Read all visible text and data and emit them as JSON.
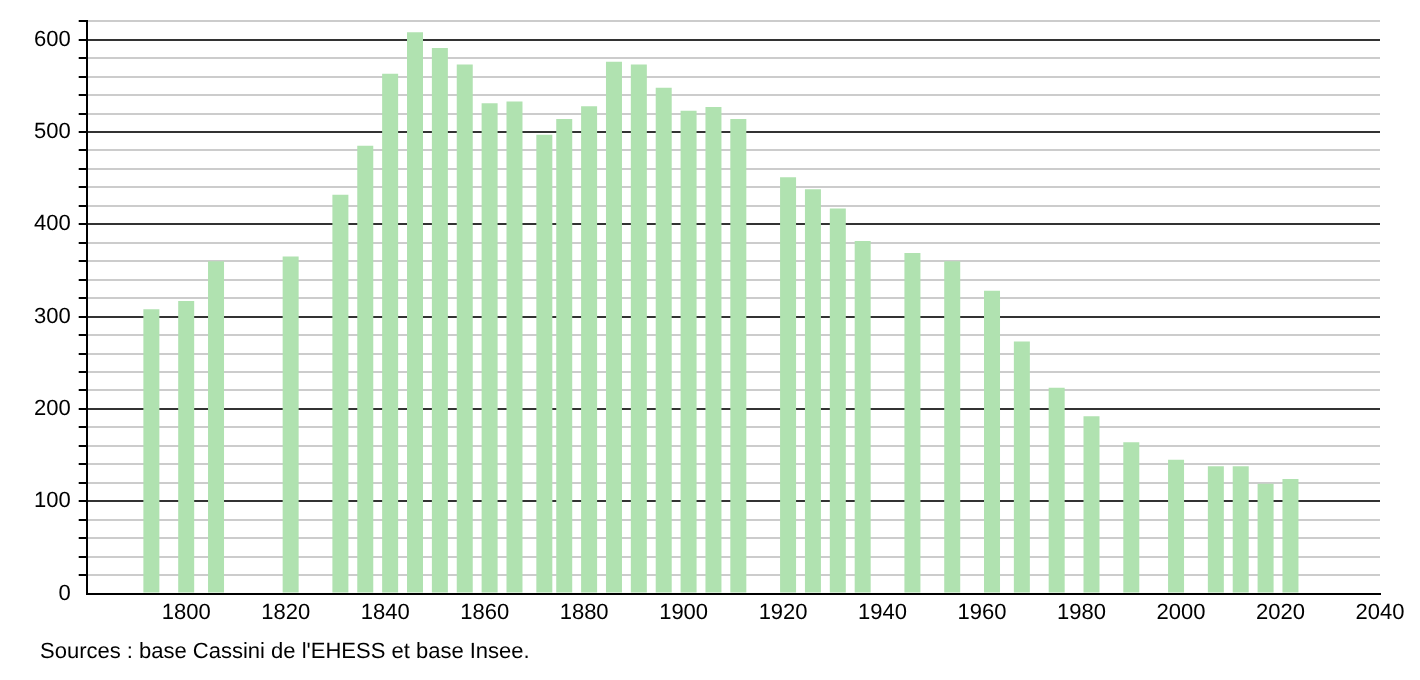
{
  "chart_data": {
    "type": "bar",
    "color": "#b0e2b0",
    "x": [
      1793,
      1800,
      1806,
      1821,
      1831,
      1836,
      1841,
      1846,
      1851,
      1856,
      1861,
      1866,
      1872,
      1876,
      1881,
      1886,
      1891,
      1896,
      1901,
      1906,
      1911,
      1921,
      1926,
      1931,
      1936,
      1946,
      1954,
      1962,
      1968,
      1975,
      1982,
      1990,
      1999,
      2007,
      2012,
      2017,
      2022
    ],
    "values": [
      308,
      317,
      360,
      365,
      432,
      485,
      563,
      608,
      591,
      573,
      531,
      533,
      497,
      514,
      528,
      576,
      573,
      548,
      523,
      527,
      514,
      451,
      438,
      417,
      382,
      369,
      360,
      328,
      273,
      223,
      192,
      164,
      145,
      138,
      138,
      119,
      124
    ],
    "xlim": [
      1780,
      2040
    ],
    "xticks": [
      1800,
      1820,
      1840,
      1860,
      1880,
      1900,
      1920,
      1940,
      1960,
      1980,
      2000,
      2020,
      2040
    ],
    "ylim": [
      0,
      620
    ],
    "yticks": [
      0,
      {
        "value": 20,
        "label": null
      },
      {
        "value": 40,
        "label": null
      },
      {
        "value": 60,
        "label": null
      },
      {
        "value": 80,
        "label": null
      },
      100,
      {
        "value": 120,
        "label": null
      },
      {
        "value": 140,
        "label": null
      },
      {
        "value": 160,
        "label": null
      },
      {
        "value": 180,
        "label": null
      },
      200,
      {
        "value": 220,
        "label": null
      },
      {
        "value": 240,
        "label": null
      },
      {
        "value": 260,
        "label": null
      },
      {
        "value": 280,
        "label": null
      },
      300,
      {
        "value": 320,
        "label": null
      },
      {
        "value": 340,
        "label": null
      },
      {
        "value": 360,
        "label": null
      },
      {
        "value": 380,
        "label": null
      },
      400,
      {
        "value": 420,
        "label": null
      },
      {
        "value": 440,
        "label": null
      },
      {
        "value": 460,
        "label": null
      },
      {
        "value": 480,
        "label": null
      },
      500,
      {
        "value": 520,
        "label": null
      },
      {
        "value": 540,
        "label": null
      },
      {
        "value": 560,
        "label": null
      },
      {
        "value": 580,
        "label": null
      },
      600,
      {
        "value": 620,
        "label": null
      }
    ],
    "grid": "y",
    "annotations": [
      "Sources : base Cassini de l'EHESS et base Insee."
    ]
  }
}
